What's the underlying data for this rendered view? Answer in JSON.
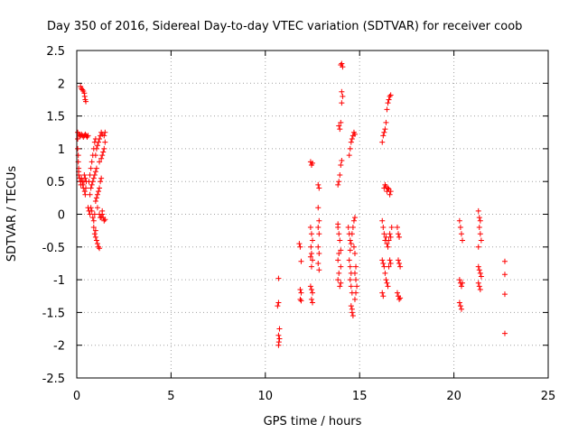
{
  "chart_data": {
    "type": "scatter",
    "title": "Day 350 of 2016, Sidereal Day-to-day VTEC variation (SDTVAR) for receiver coob",
    "xlabel": "GPS time / hours",
    "ylabel": "SDTVAR / TECUs",
    "xlim": [
      0,
      25
    ],
    "ylim": [
      -2.5,
      2.5
    ],
    "xticks": [
      "0",
      "5",
      "10",
      "15",
      "20",
      "25"
    ],
    "yticks": [
      "2.5",
      "2",
      "1.5",
      "1",
      "0.5",
      "0",
      "-0.5",
      "-1",
      "-1.5",
      "-2",
      "-2.5"
    ],
    "grid": true,
    "marker": "plus",
    "color": "#ff0000",
    "series": [
      {
        "points": [
          [
            0.05,
            1.25
          ],
          [
            0.05,
            1.15
          ],
          [
            0.05,
            1.0
          ],
          [
            0.08,
            0.9
          ],
          [
            0.08,
            0.8
          ],
          [
            0.1,
            0.7
          ],
          [
            0.1,
            0.65
          ],
          [
            0.12,
            1.22
          ],
          [
            0.15,
            1.2
          ],
          [
            0.2,
            1.2
          ],
          [
            0.25,
            1.22
          ],
          [
            0.3,
            1.2
          ],
          [
            0.35,
            1.18
          ],
          [
            0.4,
            1.2
          ],
          [
            0.45,
            1.22
          ],
          [
            0.5,
            1.2
          ],
          [
            0.55,
            1.18
          ],
          [
            0.6,
            1.2
          ],
          [
            0.1,
            0.6
          ],
          [
            0.15,
            0.55
          ],
          [
            0.2,
            0.5
          ],
          [
            0.22,
            0.45
          ],
          [
            0.25,
            0.55
          ],
          [
            0.3,
            0.5
          ],
          [
            0.32,
            0.45
          ],
          [
            0.35,
            0.4
          ],
          [
            0.38,
            0.5
          ],
          [
            0.4,
            0.6
          ],
          [
            0.45,
            0.55
          ],
          [
            0.5,
            0.5
          ],
          [
            0.42,
            0.35
          ],
          [
            0.45,
            0.3
          ],
          [
            0.48,
            0.4
          ],
          [
            0.2,
            1.95
          ],
          [
            0.25,
            1.92
          ],
          [
            0.3,
            1.9
          ],
          [
            0.35,
            1.88
          ],
          [
            0.4,
            1.85
          ],
          [
            0.42,
            1.8
          ],
          [
            0.45,
            1.75
          ],
          [
            0.48,
            1.72
          ],
          [
            0.6,
            0.1
          ],
          [
            0.65,
            0.05
          ],
          [
            0.7,
            0.0
          ],
          [
            0.75,
            0.1
          ],
          [
            0.8,
            0.05
          ],
          [
            0.85,
            -0.05
          ],
          [
            0.9,
            -0.1
          ],
          [
            0.95,
            0.0
          ],
          [
            0.65,
            0.5
          ],
          [
            0.7,
            0.6
          ],
          [
            0.75,
            0.7
          ],
          [
            0.8,
            0.8
          ],
          [
            0.85,
            0.9
          ],
          [
            0.9,
            1.0
          ],
          [
            0.95,
            1.1
          ],
          [
            1.0,
            1.15
          ],
          [
            0.7,
            0.3
          ],
          [
            0.75,
            0.4
          ],
          [
            0.8,
            0.45
          ],
          [
            0.85,
            0.5
          ],
          [
            0.9,
            0.55
          ],
          [
            0.95,
            0.6
          ],
          [
            1.0,
            0.65
          ],
          [
            1.05,
            0.7
          ],
          [
            0.9,
            -0.2
          ],
          [
            0.95,
            -0.3
          ],
          [
            1.0,
            -0.35
          ],
          [
            1.05,
            -0.4
          ],
          [
            1.1,
            -0.45
          ],
          [
            1.15,
            -0.5
          ],
          [
            1.2,
            -0.52
          ],
          [
            1.0,
            -0.25
          ],
          [
            1.0,
            0.9
          ],
          [
            1.05,
            1.0
          ],
          [
            1.1,
            1.05
          ],
          [
            1.15,
            1.1
          ],
          [
            1.2,
            1.15
          ],
          [
            1.25,
            1.2
          ],
          [
            1.3,
            1.25
          ],
          [
            1.35,
            1.22
          ],
          [
            1.0,
            0.2
          ],
          [
            1.05,
            0.25
          ],
          [
            1.1,
            0.3
          ],
          [
            1.15,
            0.35
          ],
          [
            1.2,
            0.4
          ],
          [
            1.25,
            0.5
          ],
          [
            1.3,
            0.55
          ],
          [
            1.1,
            0.1
          ],
          [
            1.2,
            0.0
          ],
          [
            1.25,
            -0.05
          ],
          [
            1.3,
            -0.05
          ],
          [
            1.35,
            0.0
          ],
          [
            1.4,
            -0.05
          ],
          [
            1.45,
            -0.1
          ],
          [
            1.5,
            -0.08
          ],
          [
            1.35,
            0.05
          ],
          [
            1.2,
            0.8
          ],
          [
            1.3,
            0.85
          ],
          [
            1.35,
            0.9
          ],
          [
            1.4,
            0.95
          ],
          [
            1.45,
            1.0
          ],
          [
            1.5,
            1.1
          ],
          [
            1.45,
            1.2
          ],
          [
            1.5,
            1.25
          ],
          [
            10.7,
            -0.98
          ],
          [
            10.65,
            -1.4
          ],
          [
            10.7,
            -1.35
          ],
          [
            10.75,
            -1.75
          ],
          [
            10.7,
            -1.85
          ],
          [
            10.75,
            -1.9
          ],
          [
            10.7,
            -2.0
          ],
          [
            10.72,
            -1.95
          ],
          [
            11.8,
            -0.45
          ],
          [
            11.85,
            -0.5
          ],
          [
            11.9,
            -0.72
          ],
          [
            11.85,
            -1.15
          ],
          [
            11.9,
            -1.2
          ],
          [
            11.85,
            -1.3
          ],
          [
            11.9,
            -1.32
          ],
          [
            12.4,
            0.8
          ],
          [
            12.45,
            0.75
          ],
          [
            12.5,
            0.78
          ],
          [
            12.4,
            -0.2
          ],
          [
            12.45,
            -0.3
          ],
          [
            12.5,
            -0.4
          ],
          [
            12.42,
            -0.5
          ],
          [
            12.45,
            -0.6
          ],
          [
            12.4,
            -0.65
          ],
          [
            12.5,
            -0.7
          ],
          [
            12.45,
            -0.8
          ],
          [
            12.4,
            -1.1
          ],
          [
            12.45,
            -1.15
          ],
          [
            12.5,
            -1.2
          ],
          [
            12.45,
            -1.3
          ],
          [
            12.5,
            -1.35
          ],
          [
            12.8,
            0.45
          ],
          [
            12.85,
            0.4
          ],
          [
            12.8,
            0.1
          ],
          [
            12.85,
            -0.1
          ],
          [
            12.8,
            -0.2
          ],
          [
            12.85,
            -0.3
          ],
          [
            12.8,
            -0.5
          ],
          [
            12.85,
            -0.6
          ],
          [
            12.8,
            -0.75
          ],
          [
            12.85,
            -0.85
          ],
          [
            13.85,
            -0.2
          ],
          [
            13.9,
            -0.3
          ],
          [
            13.95,
            -0.4
          ],
          [
            14.0,
            -0.55
          ],
          [
            13.9,
            -0.6
          ],
          [
            13.85,
            -0.7
          ],
          [
            14.0,
            -0.8
          ],
          [
            13.9,
            -0.9
          ],
          [
            13.85,
            -1.0
          ],
          [
            13.95,
            -1.1
          ],
          [
            14.0,
            -1.05
          ],
          [
            13.85,
            -0.15
          ],
          [
            13.85,
            0.45
          ],
          [
            13.9,
            0.5
          ],
          [
            13.95,
            0.6
          ],
          [
            14.0,
            0.75
          ],
          [
            14.05,
            0.82
          ],
          [
            13.95,
            1.3
          ],
          [
            14.0,
            1.4
          ],
          [
            13.9,
            1.35
          ],
          [
            14.05,
            1.7
          ],
          [
            14.1,
            1.8
          ],
          [
            14.05,
            1.87
          ],
          [
            14.0,
            2.28
          ],
          [
            14.05,
            2.3
          ],
          [
            14.1,
            2.25
          ],
          [
            14.4,
            -0.2
          ],
          [
            14.45,
            -0.3
          ],
          [
            14.5,
            -0.4
          ],
          [
            14.55,
            -0.45
          ],
          [
            14.5,
            -0.55
          ],
          [
            14.45,
            -0.7
          ],
          [
            14.5,
            -0.8
          ],
          [
            14.55,
            -0.9
          ],
          [
            14.5,
            -1.0
          ],
          [
            14.55,
            -1.1
          ],
          [
            14.6,
            -1.2
          ],
          [
            14.55,
            -1.4
          ],
          [
            14.6,
            -1.5
          ],
          [
            14.65,
            -1.55
          ],
          [
            14.6,
            -1.45
          ],
          [
            14.45,
            0.9
          ],
          [
            14.5,
            1.0
          ],
          [
            14.55,
            1.1
          ],
          [
            14.6,
            1.15
          ],
          [
            14.65,
            1.2
          ],
          [
            14.7,
            1.25
          ],
          [
            14.75,
            1.22
          ],
          [
            14.6,
            -0.3
          ],
          [
            14.65,
            -0.2
          ],
          [
            14.7,
            -0.1
          ],
          [
            14.75,
            -0.05
          ],
          [
            14.7,
            -0.5
          ],
          [
            14.75,
            -0.6
          ],
          [
            14.8,
            -0.8
          ],
          [
            14.75,
            -0.9
          ],
          [
            14.8,
            -1.0
          ],
          [
            14.85,
            -1.1
          ],
          [
            14.8,
            -1.2
          ],
          [
            14.75,
            -1.3
          ],
          [
            16.2,
            1.1
          ],
          [
            16.25,
            1.2
          ],
          [
            16.3,
            1.25
          ],
          [
            16.35,
            1.3
          ],
          [
            16.4,
            1.4
          ],
          [
            16.45,
            1.6
          ],
          [
            16.5,
            1.7
          ],
          [
            16.55,
            1.75
          ],
          [
            16.6,
            1.8
          ],
          [
            16.65,
            1.82
          ],
          [
            16.3,
            0.4
          ],
          [
            16.35,
            0.45
          ],
          [
            16.4,
            0.42
          ],
          [
            16.45,
            0.35
          ],
          [
            16.5,
            0.4
          ],
          [
            16.55,
            0.38
          ],
          [
            16.6,
            0.3
          ],
          [
            16.65,
            0.35
          ],
          [
            16.2,
            -0.1
          ],
          [
            16.25,
            -0.2
          ],
          [
            16.3,
            -0.3
          ],
          [
            16.35,
            -0.4
          ],
          [
            16.4,
            -0.35
          ],
          [
            16.45,
            -0.45
          ],
          [
            16.5,
            -0.5
          ],
          [
            16.55,
            -0.4
          ],
          [
            16.6,
            -0.3
          ],
          [
            16.65,
            -0.35
          ],
          [
            16.7,
            -0.2
          ],
          [
            16.2,
            -0.7
          ],
          [
            16.25,
            -0.75
          ],
          [
            16.3,
            -0.8
          ],
          [
            16.35,
            -0.9
          ],
          [
            16.4,
            -1.0
          ],
          [
            16.45,
            -1.05
          ],
          [
            16.5,
            -1.1
          ],
          [
            16.55,
            -0.8
          ],
          [
            16.6,
            -0.7
          ],
          [
            16.65,
            -0.75
          ],
          [
            16.2,
            -1.2
          ],
          [
            16.25,
            -1.25
          ],
          [
            17.0,
            -0.2
          ],
          [
            17.05,
            -0.3
          ],
          [
            17.1,
            -0.35
          ],
          [
            17.05,
            -0.7
          ],
          [
            17.1,
            -0.75
          ],
          [
            17.15,
            -0.8
          ],
          [
            17.0,
            -1.2
          ],
          [
            17.05,
            -1.25
          ],
          [
            17.1,
            -1.3
          ],
          [
            17.15,
            -1.28
          ],
          [
            20.3,
            -0.1
          ],
          [
            20.35,
            -0.2
          ],
          [
            20.4,
            -0.3
          ],
          [
            20.45,
            -0.4
          ],
          [
            20.3,
            -1.0
          ],
          [
            20.35,
            -1.05
          ],
          [
            20.4,
            -1.1
          ],
          [
            20.45,
            -1.05
          ],
          [
            20.3,
            -1.35
          ],
          [
            20.35,
            -1.4
          ],
          [
            20.4,
            -1.45
          ],
          [
            21.3,
            0.05
          ],
          [
            21.35,
            -0.05
          ],
          [
            21.4,
            -0.1
          ],
          [
            21.35,
            -0.2
          ],
          [
            21.4,
            -0.3
          ],
          [
            21.45,
            -0.4
          ],
          [
            21.3,
            -0.5
          ],
          [
            21.3,
            -0.8
          ],
          [
            21.35,
            -0.85
          ],
          [
            21.4,
            -0.9
          ],
          [
            21.45,
            -0.95
          ],
          [
            21.3,
            -1.05
          ],
          [
            21.35,
            -1.1
          ],
          [
            21.4,
            -1.15
          ],
          [
            22.7,
            -0.72
          ],
          [
            22.7,
            -0.92
          ],
          [
            22.7,
            -1.22
          ],
          [
            22.7,
            -1.82
          ]
        ]
      }
    ]
  }
}
